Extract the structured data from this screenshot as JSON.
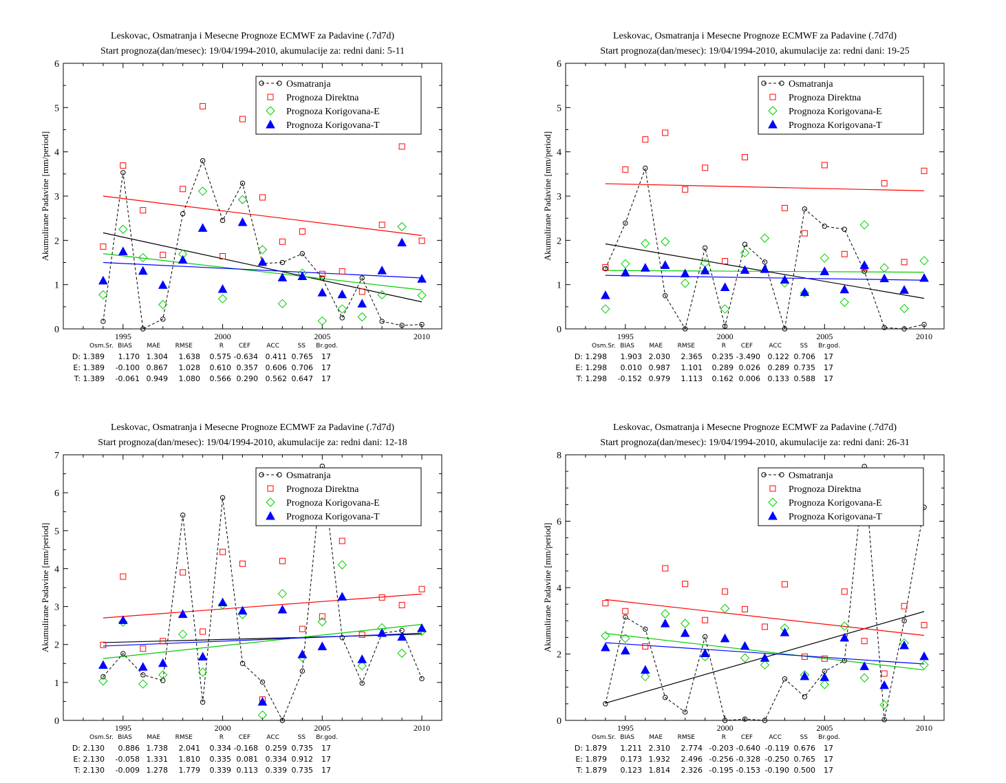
{
  "colors": {
    "obs": "#000000",
    "direct": "#ff0000",
    "corrE": "#00cc00",
    "corrT": "#0000ff"
  },
  "legend": [
    "Osmatranja",
    "Prognoza Direktna",
    "Prognoza Korigovana-E",
    "Prognoza Korigovana-T"
  ],
  "stat_headers": [
    "Osm.Sr.",
    "BIAS",
    "MAE",
    "RMSE",
    "R",
    "CEF",
    "ACC",
    "SS",
    "Br.god."
  ],
  "chart_data": [
    {
      "type": "scatter",
      "title": "Leskovac, Osmatranja i Mesecne Prognoze ECMWF za Padavine (.7d7d)",
      "subtitle": "Start prognoza(dan/mesec): 19/04/1994-2010, akumulacije za: redni dani: 5-11",
      "ylabel": "Akumulirane Padavine [mm/period]",
      "xlim": [
        1992,
        2011
      ],
      "ylim": [
        0,
        6
      ],
      "xticks": [
        1995,
        2000,
        2005,
        2010
      ],
      "yticks": [
        0,
        1,
        2,
        3,
        4,
        5,
        6
      ],
      "x": [
        1994,
        1995,
        1996,
        1997,
        1998,
        1999,
        2000,
        2001,
        2002,
        2003,
        2004,
        2005,
        2006,
        2007,
        2008,
        2009,
        2010
      ],
      "series": [
        {
          "name": "Osmatranja",
          "values": [
            0.17,
            3.53,
            0.0,
            0.22,
            2.6,
            3.8,
            2.45,
            3.29,
            1.48,
            1.5,
            1.7,
            1.15,
            0.25,
            1.15,
            0.17,
            0.08,
            0.1
          ]
        },
        {
          "name": "Prognoza Direktna",
          "values": [
            1.86,
            3.69,
            2.68,
            1.67,
            3.16,
            5.03,
            1.64,
            4.74,
            2.97,
            1.97,
            2.2,
            1.24,
            1.3,
            0.84,
            2.35,
            4.12,
            1.99
          ]
        },
        {
          "name": "Prognoza Korigovana-E",
          "values": [
            0.77,
            2.25,
            1.61,
            0.55,
            1.69,
            3.11,
            0.68,
            2.92,
            1.79,
            0.57,
            1.26,
            0.18,
            0.45,
            0.27,
            0.77,
            2.31,
            0.76
          ]
        },
        {
          "name": "Prognoza Korigovana-T",
          "values": [
            1.09,
            1.75,
            1.31,
            0.99,
            1.56,
            2.28,
            0.9,
            2.41,
            1.51,
            1.16,
            1.19,
            0.82,
            0.78,
            0.57,
            1.32,
            1.95,
            1.13
          ]
        }
      ],
      "trends": {
        "obs": [
          2.17,
          0.61
        ],
        "direct": [
          3.0,
          2.11
        ],
        "corrE": [
          1.7,
          0.88
        ],
        "corrT": [
          1.5,
          1.15
        ]
      },
      "stats": [
        {
          "label": "D:",
          "values": [
            "1.389",
            "1.170",
            "1.304",
            "1.638",
            "0.575",
            "-0.634",
            "0.411",
            "0.765",
            "17"
          ]
        },
        {
          "label": "E:",
          "values": [
            "1.389",
            "-0.100",
            "0.867",
            "1.028",
            "0.610",
            "0.357",
            "0.606",
            "0.706",
            "17"
          ]
        },
        {
          "label": "T:",
          "values": [
            "1.389",
            "-0.061",
            "0.949",
            "1.080",
            "0.566",
            "0.290",
            "0.562",
            "0.647",
            "17"
          ]
        }
      ]
    },
    {
      "type": "scatter",
      "title": "Leskovac, Osmatranja i Mesecne Prognoze ECMWF za Padavine (.7d7d)",
      "subtitle": "Start prognoza(dan/mesec): 19/04/1994-2010, akumulacije za: redni dani: 19-25",
      "ylabel": "Akumulirane Padavine [mm/period]",
      "xlim": [
        1992,
        2011
      ],
      "ylim": [
        0,
        6
      ],
      "xticks": [
        1995,
        2000,
        2005,
        2010
      ],
      "yticks": [
        0,
        1,
        2,
        3,
        4,
        5,
        6
      ],
      "x": [
        1994,
        1995,
        1996,
        1997,
        1998,
        1999,
        2000,
        2001,
        2002,
        2003,
        2004,
        2005,
        2006,
        2007,
        2008,
        2009,
        2010
      ],
      "series": [
        {
          "name": "Osmatranja",
          "values": [
            1.36,
            2.39,
            3.63,
            0.75,
            0.0,
            1.83,
            0.06,
            1.91,
            1.51,
            0.0,
            2.71,
            2.32,
            2.25,
            1.3,
            0.03,
            0.0,
            0.1
          ]
        },
        {
          "name": "Prognoza Direktna",
          "values": [
            1.39,
            3.6,
            4.28,
            4.43,
            3.15,
            3.64,
            1.53,
            3.88,
            4.48,
            2.73,
            2.16,
            3.7,
            1.69,
            1.38,
            3.29,
            1.51,
            3.57
          ]
        },
        {
          "name": "Prognoza Korigovana-E",
          "values": [
            0.45,
            1.47,
            1.93,
            1.97,
            1.03,
            1.49,
            0.45,
            1.72,
            2.05,
            1.04,
            0.81,
            1.6,
            0.6,
            2.35,
            1.38,
            0.46,
            1.54
          ]
        },
        {
          "name": "Prognoza Korigovana-T",
          "values": [
            0.76,
            1.27,
            1.38,
            1.44,
            1.25,
            1.32,
            0.94,
            1.33,
            1.35,
            1.11,
            0.83,
            1.3,
            0.89,
            1.44,
            1.14,
            0.88,
            1.15
          ]
        }
      ],
      "trends": {
        "obs": [
          1.92,
          0.69
        ],
        "direct": [
          3.28,
          3.12
        ],
        "corrE": [
          1.32,
          1.28
        ],
        "corrT": [
          1.21,
          1.1
        ]
      },
      "stats": [
        {
          "label": "D:",
          "values": [
            "1.298",
            "1.903",
            "2.030",
            "2.365",
            "0.235",
            "-3.490",
            "0.122",
            "0.706",
            "17"
          ]
        },
        {
          "label": "E:",
          "values": [
            "1.298",
            "0.010",
            "0.987",
            "1.101",
            "0.289",
            "0.026",
            "0.289",
            "0.735",
            "17"
          ]
        },
        {
          "label": "T:",
          "values": [
            "1.298",
            "-0.152",
            "0.979",
            "1.113",
            "0.162",
            "0.006",
            "0.133",
            "0.588",
            "17"
          ]
        }
      ]
    },
    {
      "type": "scatter",
      "title": "Leskovac, Osmatranja i Mesecne Prognoze ECMWF za Padavine (.7d7d)",
      "subtitle": "Start prognoza(dan/mesec): 19/04/1994-2010, akumulacije za: redni dani: 12-18",
      "ylabel": "Akumulirane Padavine [mm/period]",
      "xlim": [
        1992,
        2011
      ],
      "ylim": [
        0,
        7
      ],
      "xticks": [
        1995,
        2000,
        2005,
        2010
      ],
      "yticks": [
        0,
        1,
        2,
        3,
        4,
        5,
        6,
        7
      ],
      "x": [
        1994,
        1995,
        1996,
        1997,
        1998,
        1999,
        2000,
        2001,
        2002,
        2003,
        2004,
        2005,
        2006,
        2007,
        2008,
        2009,
        2010
      ],
      "series": [
        {
          "name": "Osmatranja",
          "values": [
            1.15,
            1.76,
            1.2,
            1.05,
            5.41,
            0.48,
            5.87,
            1.5,
            1.01,
            0.0,
            1.3,
            6.7,
            2.18,
            0.98,
            2.3,
            2.37,
            1.1
          ]
        },
        {
          "name": "Prognoza Direktna",
          "values": [
            1.99,
            3.79,
            1.89,
            2.09,
            3.9,
            2.34,
            4.44,
            4.13,
            0.55,
            4.2,
            2.41,
            2.74,
            4.73,
            2.26,
            3.24,
            3.04,
            3.46
          ]
        },
        {
          "name": "Prognoza Korigovana-E",
          "values": [
            1.04,
            2.59,
            0.96,
            1.2,
            2.27,
            1.27,
            3.05,
            2.79,
            0.14,
            3.34,
            1.66,
            2.6,
            4.1,
            1.44,
            2.44,
            1.77,
            2.35
          ]
        },
        {
          "name": "Prognoza Korigovana-T",
          "values": [
            1.46,
            2.64,
            1.41,
            1.51,
            2.8,
            1.68,
            3.11,
            2.89,
            0.49,
            2.92,
            1.74,
            1.95,
            3.26,
            1.61,
            2.3,
            2.2,
            2.43
          ]
        }
      ],
      "trends": {
        "obs": [
          2.05,
          2.27
        ],
        "direct": [
          2.7,
          3.33
        ],
        "corrE": [
          1.63,
          2.53
        ],
        "corrT": [
          1.96,
          2.3
        ]
      },
      "stats": [
        {
          "label": "D:",
          "values": [
            "2.130",
            "0.886",
            "1.738",
            "2.041",
            "0.334",
            "-0.168",
            "0.259",
            "0.735",
            "17"
          ]
        },
        {
          "label": "E:",
          "values": [
            "2.130",
            "-0.058",
            "1.331",
            "1.810",
            "0.335",
            "0.081",
            "0.334",
            "0.912",
            "17"
          ]
        },
        {
          "label": "T:",
          "values": [
            "2.130",
            "-0.009",
            "1.278",
            "1.779",
            "0.339",
            "0.113",
            "0.339",
            "0.735",
            "17"
          ]
        }
      ]
    },
    {
      "type": "scatter",
      "title": "Leskovac, Osmatranja i Mesecne Prognoze ECMWF za Padavine (.7d7d)",
      "subtitle": "Start prognoza(dan/mesec): 19/04/1994-2010, akumulacije za: redni dani: 26-31",
      "ylabel": "Akumulirane Padavine [mm/period]",
      "xlim": [
        1992,
        2011
      ],
      "ylim": [
        0,
        8
      ],
      "xticks": [
        1995,
        2000,
        2005,
        2010
      ],
      "yticks": [
        0,
        2,
        4,
        6,
        8
      ],
      "x": [
        1994,
        1995,
        1996,
        1997,
        1998,
        1999,
        2000,
        2001,
        2002,
        2003,
        2004,
        2005,
        2006,
        2007,
        2008,
        2009,
        2010
      ],
      "series": [
        {
          "name": "Osmatranja",
          "values": [
            0.5,
            3.11,
            2.75,
            0.69,
            0.25,
            2.52,
            0.0,
            0.04,
            0.0,
            1.25,
            0.71,
            1.48,
            1.8,
            7.65,
            0.02,
            3.0,
            6.42
          ]
        },
        {
          "name": "Prognoza Direktna",
          "values": [
            3.53,
            3.29,
            2.23,
            4.58,
            4.11,
            3.02,
            3.88,
            3.35,
            2.82,
            4.1,
            1.92,
            1.86,
            3.88,
            2.39,
            1.41,
            3.44,
            2.87
          ]
        },
        {
          "name": "Prognoza Korigovana-E",
          "values": [
            2.55,
            2.47,
            1.32,
            3.21,
            2.92,
            1.92,
            3.37,
            1.88,
            1.67,
            2.78,
            1.37,
            1.08,
            2.84,
            1.28,
            0.47,
            2.33,
            1.67
          ]
        },
        {
          "name": "Prognoza Korigovana-T",
          "values": [
            2.2,
            2.1,
            1.52,
            2.92,
            2.63,
            2.02,
            2.47,
            2.24,
            1.88,
            2.65,
            1.33,
            1.3,
            2.49,
            1.63,
            1.06,
            2.26,
            1.93
          ]
        }
      ],
      "trends": {
        "obs": [
          0.52,
          3.28
        ],
        "direct": [
          3.64,
          2.56
        ],
        "corrE": [
          2.62,
          1.52
        ],
        "corrT": [
          2.34,
          1.7
        ]
      },
      "stats": [
        {
          "label": "D:",
          "values": [
            "1.879",
            "1.211",
            "2.310",
            "2.774",
            "-0.203",
            "-0.640",
            "-0.119",
            "0.676",
            "17"
          ]
        },
        {
          "label": "E:",
          "values": [
            "1.879",
            "0.173",
            "1.932",
            "2.496",
            "-0.256",
            "-0.328",
            "-0.250",
            "0.765",
            "17"
          ]
        },
        {
          "label": "T:",
          "values": [
            "1.879",
            "0.123",
            "1.814",
            "2.326",
            "-0.195",
            "-0.153",
            "-0.190",
            "0.500",
            "17"
          ]
        }
      ]
    }
  ]
}
